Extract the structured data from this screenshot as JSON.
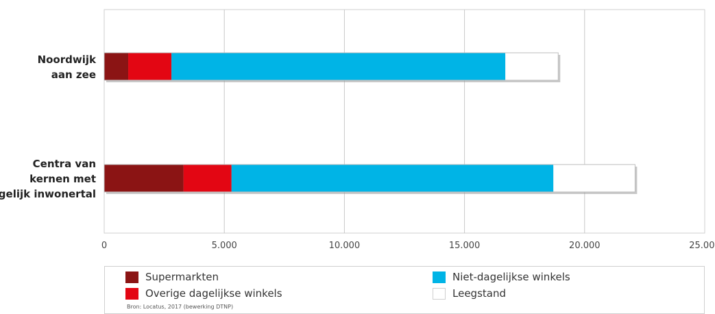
{
  "chart_data": {
    "type": "bar",
    "orientation": "horizontal",
    "stacked": true,
    "categories": [
      [
        "Noordwijk",
        "aan zee"
      ],
      [
        "Centra van",
        "kernen met",
        "gelijk inwonertal"
      ]
    ],
    "series": [
      {
        "name": "Supermarkten",
        "color": "#8b1414",
        "values": [
          1000,
          3300
        ]
      },
      {
        "name": "Overige dagelijkse winkels",
        "color": "#e30613",
        "values": [
          1800,
          2000
        ]
      },
      {
        "name": "Niet-dagelijkse winkels",
        "color": "#00b4e6",
        "values": [
          13900,
          13400
        ]
      },
      {
        "name": "Leegstand",
        "color": "#ffffff",
        "values": [
          2200,
          3400
        ]
      }
    ],
    "xlim": [
      0,
      25000
    ],
    "xticks": [
      0,
      5000,
      10000,
      15000,
      20000,
      25000
    ],
    "xtick_labels": [
      "0",
      "5.000",
      "10.000",
      "15.000",
      "20.000",
      "25.000"
    ],
    "grid": true,
    "legend_position": "bottom"
  },
  "legend": {
    "items": [
      {
        "label": "Supermarkten",
        "color": "#8b1414"
      },
      {
        "label": "Overige dagelijkse winkels",
        "color": "#e30613"
      },
      {
        "label": "Niet-dagelijkse winkels",
        "color": "#00b4e6"
      },
      {
        "label": "Leegstand",
        "color": "#ffffff"
      }
    ]
  },
  "source": "Bron: Locatus, 2017 (bewerking DTNP)"
}
